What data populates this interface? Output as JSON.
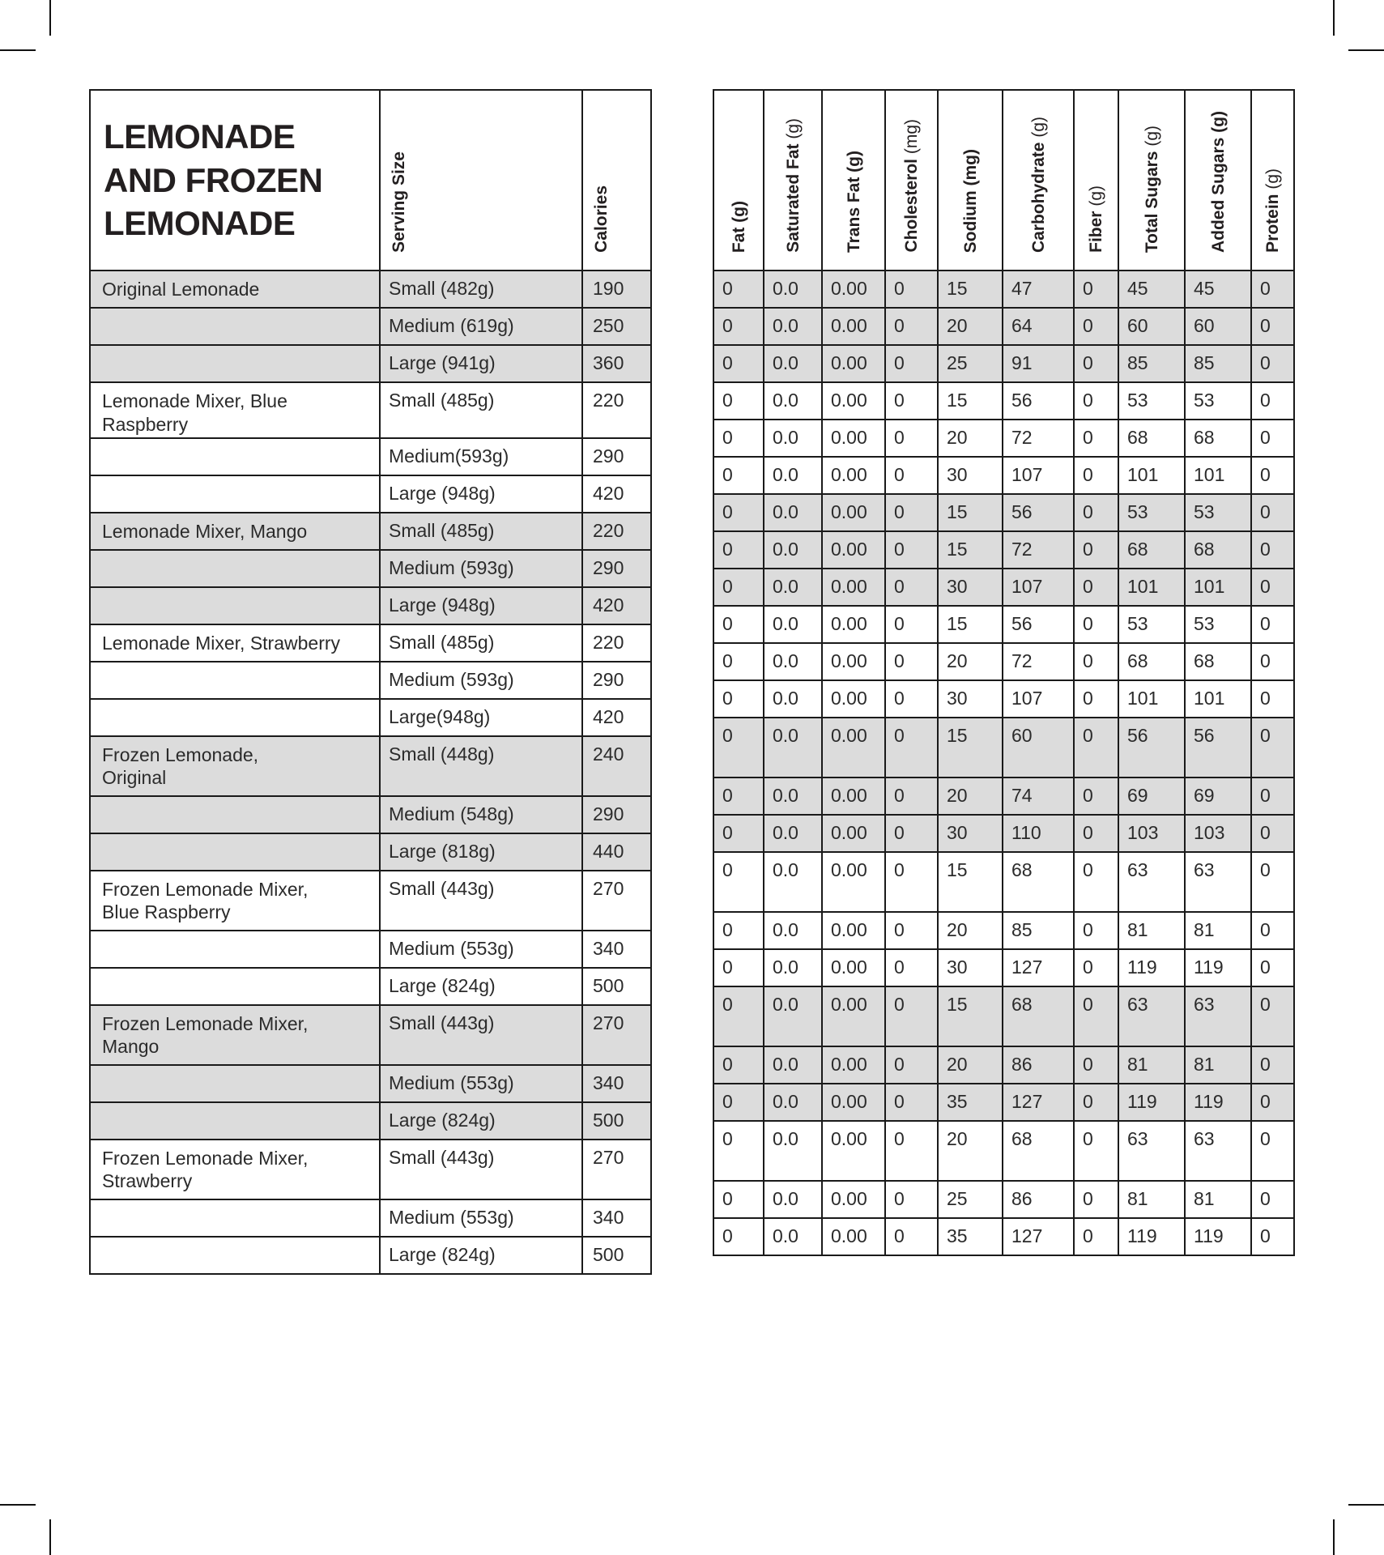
{
  "title": "LEMONADE\nAND FROZEN\nLEMONADE",
  "colors": {
    "row_shade": "#DCDCDC",
    "border": "#1A1A1A",
    "title_text": "#231F20",
    "body_text": "#2B2B2B"
  },
  "left_table": {
    "columns": [
      "Serving Size",
      "Calories"
    ]
  },
  "right_table": {
    "columns": [
      {
        "label": "Fat",
        "unit": "(g)",
        "light": false
      },
      {
        "label": "Saturated Fat",
        "unit": "(g)",
        "light": true
      },
      {
        "label": "Trans Fat",
        "unit": "(g)",
        "light": false
      },
      {
        "label": "Cholesterol",
        "unit": "(mg)",
        "light": true
      },
      {
        "label": "Sodium",
        "unit": "(mg)",
        "light": false
      },
      {
        "label": "Carbohydrate",
        "unit": "(g)",
        "light": true
      },
      {
        "label": "Fiber",
        "unit": "(g)",
        "light": true
      },
      {
        "label": "Total Sugars",
        "unit": "(g)",
        "light": true
      },
      {
        "label": "Added Sugars",
        "unit": "(g)",
        "light": false
      },
      {
        "label": "Protein",
        "unit": "(g)",
        "light": true
      }
    ]
  },
  "rows": [
    {
      "product": "Original Lemonade",
      "serving": "Small (482g)",
      "calories": "190",
      "values": [
        "0",
        "0.0",
        "0.00",
        "0",
        "15",
        "47",
        "0",
        "45",
        "45",
        "0"
      ],
      "shaded": true,
      "tall": false
    },
    {
      "product": "",
      "serving": "Medium (619g)",
      "calories": "250",
      "values": [
        "0",
        "0.0",
        "0.00",
        "0",
        "20",
        "64",
        "0",
        "60",
        "60",
        "0"
      ],
      "shaded": true,
      "tall": false
    },
    {
      "product": "",
      "serving": "Large (941g)",
      "calories": "360",
      "values": [
        "0",
        "0.0",
        "0.00",
        "0",
        "25",
        "91",
        "0",
        "85",
        "85",
        "0"
      ],
      "shaded": true,
      "tall": false
    },
    {
      "product": "Lemonade Mixer, Blue Raspberry",
      "serving": "Small (485g)",
      "calories": "220",
      "values": [
        "0",
        "0.0",
        "0.00",
        "0",
        "15",
        "56",
        "0",
        "53",
        "53",
        "0"
      ],
      "shaded": false,
      "tall": false
    },
    {
      "product": "",
      "serving": "Medium(593g)",
      "calories": "290",
      "values": [
        "0",
        "0.0",
        "0.00",
        "0",
        "20",
        "72",
        "0",
        "68",
        "68",
        "0"
      ],
      "shaded": false,
      "tall": false
    },
    {
      "product": "",
      "serving": "Large (948g)",
      "calories": "420",
      "values": [
        "0",
        "0.0",
        "0.00",
        "0",
        "30",
        "107",
        "0",
        "101",
        "101",
        "0"
      ],
      "shaded": false,
      "tall": false
    },
    {
      "product": "Lemonade Mixer, Mango",
      "serving": "Small (485g)",
      "calories": "220",
      "values": [
        "0",
        "0.0",
        "0.00",
        "0",
        "15",
        "56",
        "0",
        "53",
        "53",
        "0"
      ],
      "shaded": true,
      "tall": false
    },
    {
      "product": "",
      "serving": "Medium (593g)",
      "calories": "290",
      "values": [
        "0",
        "0.0",
        "0.00",
        "0",
        "15",
        "72",
        "0",
        "68",
        "68",
        "0"
      ],
      "shaded": true,
      "tall": false
    },
    {
      "product": "",
      "serving": "Large (948g)",
      "calories": "420",
      "values": [
        "0",
        "0.0",
        "0.00",
        "0",
        "30",
        "107",
        "0",
        "101",
        "101",
        "0"
      ],
      "shaded": true,
      "tall": false
    },
    {
      "product": "Lemonade Mixer, Strawberry",
      "serving": "Small (485g)",
      "calories": "220",
      "values": [
        "0",
        "0.0",
        "0.00",
        "0",
        "15",
        "56",
        "0",
        "53",
        "53",
        "0"
      ],
      "shaded": false,
      "tall": false
    },
    {
      "product": "",
      "serving": "Medium (593g)",
      "calories": "290",
      "values": [
        "0",
        "0.0",
        "0.00",
        "0",
        "20",
        "72",
        "0",
        "68",
        "68",
        "0"
      ],
      "shaded": false,
      "tall": false
    },
    {
      "product": "",
      "serving": "Large(948g)",
      "calories": "420",
      "values": [
        "0",
        "0.0",
        "0.00",
        "0",
        "30",
        "107",
        "0",
        "101",
        "101",
        "0"
      ],
      "shaded": false,
      "tall": false
    },
    {
      "product": "Frozen Lemonade,\nOriginal",
      "serving": "Small (448g)",
      "calories": "240",
      "values": [
        "0",
        "0.0",
        "0.00",
        "0",
        "15",
        "60",
        "0",
        "56",
        "56",
        "0"
      ],
      "shaded": true,
      "tall": true
    },
    {
      "product": "",
      "serving": "Medium (548g)",
      "calories": "290",
      "values": [
        "0",
        "0.0",
        "0.00",
        "0",
        "20",
        "74",
        "0",
        "69",
        "69",
        "0"
      ],
      "shaded": true,
      "tall": false
    },
    {
      "product": "",
      "serving": "Large (818g)",
      "calories": "440",
      "values": [
        "0",
        "0.0",
        "0.00",
        "0",
        "30",
        "110",
        "0",
        "103",
        "103",
        "0"
      ],
      "shaded": true,
      "tall": false
    },
    {
      "product": "Frozen Lemonade Mixer,\nBlue Raspberry",
      "serving": "Small (443g)",
      "calories": "270",
      "values": [
        "0",
        "0.0",
        "0.00",
        "0",
        "15",
        "68",
        "0",
        "63",
        "63",
        "0"
      ],
      "shaded": false,
      "tall": true
    },
    {
      "product": "",
      "serving": "Medium (553g)",
      "calories": "340",
      "values": [
        "0",
        "0.0",
        "0.00",
        "0",
        "20",
        "85",
        "0",
        "81",
        "81",
        "0"
      ],
      "shaded": false,
      "tall": false
    },
    {
      "product": "",
      "serving": "Large (824g)",
      "calories": "500",
      "values": [
        "0",
        "0.0",
        "0.00",
        "0",
        "30",
        "127",
        "0",
        "119",
        "119",
        "0"
      ],
      "shaded": false,
      "tall": false
    },
    {
      "product": "Frozen Lemonade Mixer,\nMango",
      "serving": "Small (443g)",
      "calories": "270",
      "values": [
        "0",
        "0.0",
        "0.00",
        "0",
        "15",
        "68",
        "0",
        "63",
        "63",
        "0"
      ],
      "shaded": true,
      "tall": true
    },
    {
      "product": "",
      "serving": "Medium (553g)",
      "calories": "340",
      "values": [
        "0",
        "0.0",
        "0.00",
        "0",
        "20",
        "86",
        "0",
        "81",
        "81",
        "0"
      ],
      "shaded": true,
      "tall": false
    },
    {
      "product": "",
      "serving": "Large (824g)",
      "calories": "500",
      "values": [
        "0",
        "0.0",
        "0.00",
        "0",
        "35",
        "127",
        "0",
        "119",
        "119",
        "0"
      ],
      "shaded": true,
      "tall": false
    },
    {
      "product": "Frozen Lemonade Mixer,\nStrawberry",
      "serving": "Small (443g)",
      "calories": "270",
      "values": [
        "0",
        "0.0",
        "0.00",
        "0",
        "20",
        "68",
        "0",
        "63",
        "63",
        "0"
      ],
      "shaded": false,
      "tall": true
    },
    {
      "product": "",
      "serving": "Medium (553g)",
      "calories": "340",
      "values": [
        "0",
        "0.0",
        "0.00",
        "0",
        "25",
        "86",
        "0",
        "81",
        "81",
        "0"
      ],
      "shaded": false,
      "tall": false
    },
    {
      "product": "",
      "serving": "Large (824g)",
      "calories": "500",
      "values": [
        "0",
        "0.0",
        "0.00",
        "0",
        "35",
        "127",
        "0",
        "119",
        "119",
        "0"
      ],
      "shaded": false,
      "tall": false
    }
  ]
}
